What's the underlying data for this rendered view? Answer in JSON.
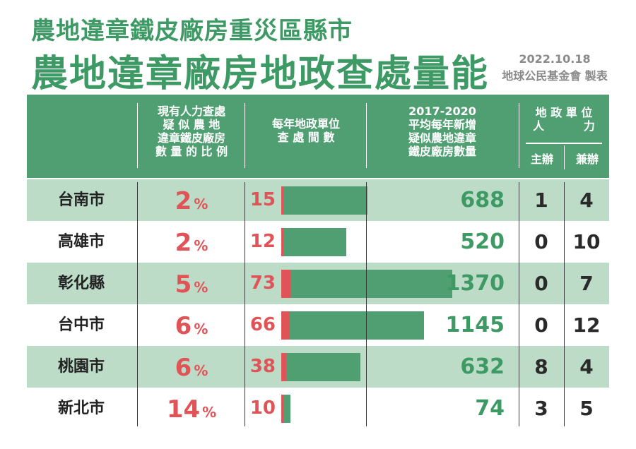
{
  "header": {
    "subtitle": "農地違章鐵皮廠房重災區縣市",
    "title": "農地違章廠房地政查處量能",
    "date": "2022.10.18",
    "credit": "地球公民基金會 製表"
  },
  "columns": {
    "ratio": "現有人力查處\n疑 似 農 地\n違章鐵皮廠房\n數 量 的 比 例",
    "inspections": "每年地政單位\n查 處 間 數",
    "factories": "2017-2020\n平均每年新增\n疑似農地違章\n鐵皮廠房數量",
    "staff": "地 政 單 位\n人          力",
    "staff_main": "主辦",
    "staff_sub": "兼辦"
  },
  "colors": {
    "green": "#4f9f72",
    "red": "#e05458",
    "row_shade": "#bcdcc8"
  },
  "chart_data": {
    "type": "table",
    "unit_symbol": "%",
    "categories": [
      "台南市",
      "高雄市",
      "彰化縣",
      "台中市",
      "桃園市",
      "新北市"
    ],
    "rows": [
      {
        "city": "台南市",
        "ratio": "2",
        "inspections": "15",
        "factories": "688",
        "staff_main": "1",
        "staff_sub": "4"
      },
      {
        "city": "高雄市",
        "ratio": "2",
        "inspections": "12",
        "factories": "520",
        "staff_main": "0",
        "staff_sub": "10"
      },
      {
        "city": "彰化縣",
        "ratio": "5",
        "inspections": "73",
        "factories": "1370",
        "staff_main": "0",
        "staff_sub": "7"
      },
      {
        "city": "台中市",
        "ratio": "6",
        "inspections": "66",
        "factories": "1145",
        "staff_main": "0",
        "staff_sub": "12"
      },
      {
        "city": "桃園市",
        "ratio": "6",
        "inspections": "38",
        "factories": "632",
        "staff_main": "8",
        "staff_sub": "4"
      },
      {
        "city": "新北市",
        "ratio": "14",
        "inspections": "10",
        "factories": "74",
        "staff_main": "3",
        "staff_sub": "5"
      }
    ]
  }
}
